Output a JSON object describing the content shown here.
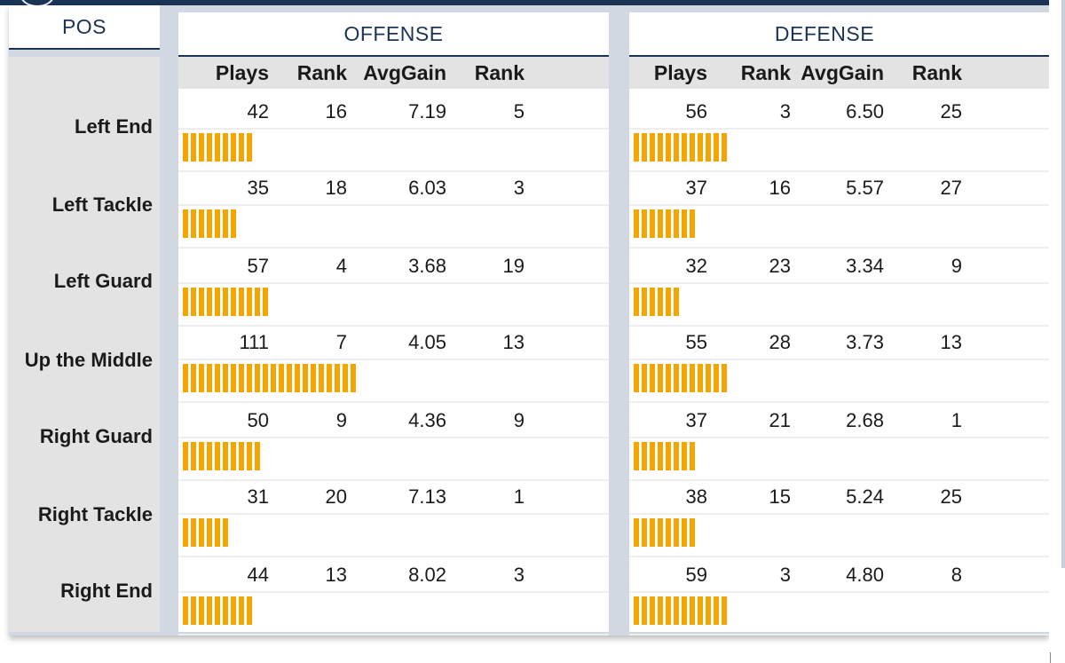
{
  "headers": {
    "pos": "POS",
    "offense": "OFFENSE",
    "defense": "DEFENSE"
  },
  "columns": {
    "plays": "Plays",
    "rank": "Rank",
    "avggain": "AvgGain",
    "rank2": "Rank"
  },
  "colors": {
    "bar": "#f5a500",
    "header_text": "#1b3354",
    "frame": "#d1d8e2",
    "label_bg": "#e3e3e3"
  },
  "rows": [
    {
      "pos": "Left End",
      "offense": {
        "plays": "42",
        "rank": "16",
        "avggain": "7.19",
        "gain_rank": "5",
        "bar_units": 9
      },
      "defense": {
        "plays": "56",
        "rank": "3",
        "avggain": "6.50",
        "gain_rank": "25",
        "bar_units": 12
      }
    },
    {
      "pos": "Left Tackle",
      "offense": {
        "plays": "35",
        "rank": "18",
        "avggain": "6.03",
        "gain_rank": "3",
        "bar_units": 7
      },
      "defense": {
        "plays": "37",
        "rank": "16",
        "avggain": "5.57",
        "gain_rank": "27",
        "bar_units": 8
      }
    },
    {
      "pos": "Left Guard",
      "offense": {
        "plays": "57",
        "rank": "4",
        "avggain": "3.68",
        "gain_rank": "19",
        "bar_units": 11
      },
      "defense": {
        "plays": "32",
        "rank": "23",
        "avggain": "3.34",
        "gain_rank": "9",
        "bar_units": 6
      }
    },
    {
      "pos": "Up the Middle",
      "offense": {
        "plays": "111",
        "rank": "7",
        "avggain": "4.05",
        "gain_rank": "13",
        "bar_units": 22
      },
      "defense": {
        "plays": "55",
        "rank": "28",
        "avggain": "3.73",
        "gain_rank": "13",
        "bar_units": 12
      }
    },
    {
      "pos": "Right Guard",
      "offense": {
        "plays": "50",
        "rank": "9",
        "avggain": "4.36",
        "gain_rank": "9",
        "bar_units": 10
      },
      "defense": {
        "plays": "37",
        "rank": "21",
        "avggain": "2.68",
        "gain_rank": "1",
        "bar_units": 8
      }
    },
    {
      "pos": "Right Tackle",
      "offense": {
        "plays": "31",
        "rank": "20",
        "avggain": "7.13",
        "gain_rank": "1",
        "bar_units": 6
      },
      "defense": {
        "plays": "38",
        "rank": "15",
        "avggain": "5.24",
        "gain_rank": "25",
        "bar_units": 8
      }
    },
    {
      "pos": "Right End",
      "offense": {
        "plays": "44",
        "rank": "13",
        "avggain": "8.02",
        "gain_rank": "3",
        "bar_units": 9
      },
      "defense": {
        "plays": "59",
        "rank": "3",
        "avggain": "4.80",
        "gain_rank": "8",
        "bar_units": 12
      }
    }
  ]
}
